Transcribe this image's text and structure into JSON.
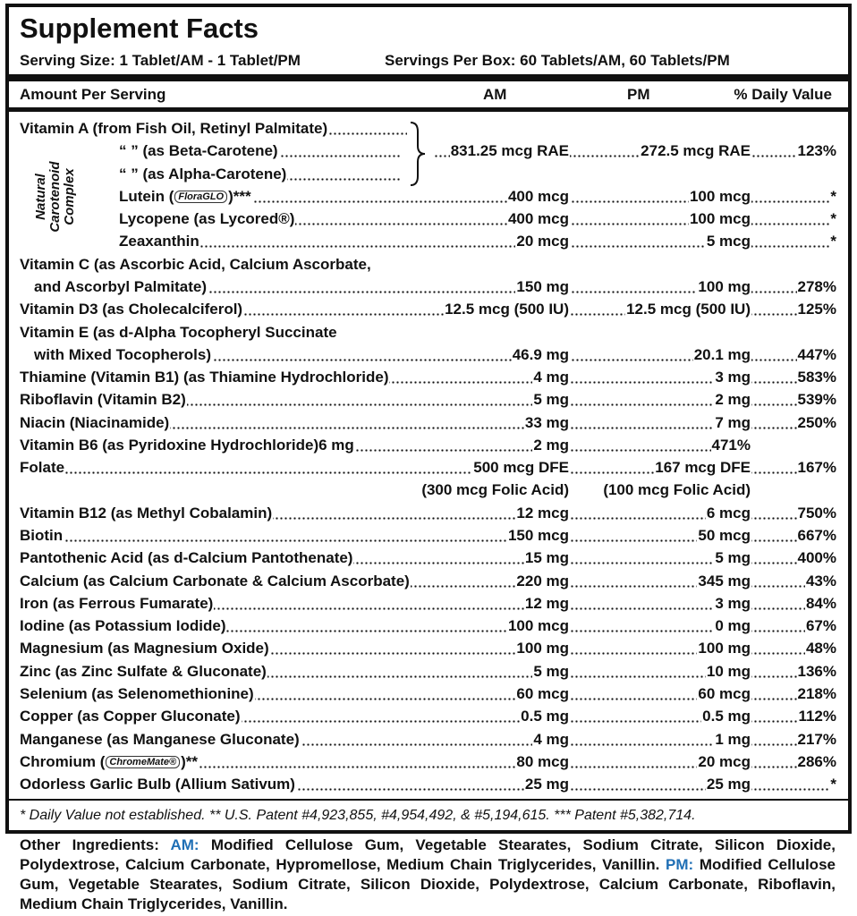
{
  "title": "Supplement Facts",
  "serving_size": "Serving Size: 1 Tablet/AM - 1 Tablet/PM",
  "servings_per_box": "Servings Per Box: 60 Tablets/AM, 60 Tablets/PM",
  "header": {
    "amount": "Amount Per Serving",
    "am": "AM",
    "pm": "PM",
    "dv": "% Daily Value"
  },
  "vitamin_a": {
    "name": "Vitamin A (from Fish Oil, Retinyl Palmitate)",
    "forms": [
      "“  ” (as Beta-Carotene)",
      "“  ” (as Alpha-Carotene)"
    ],
    "am": "831.25 mcg RAE",
    "pm": "272.5 mcg RAE",
    "dv": "123%"
  },
  "side_label": [
    "Natural",
    "Carotenoid",
    "Complex"
  ],
  "carotenoids": [
    {
      "name": "Lutein (",
      "logo": "FloraGLO",
      "name_end": ")***",
      "am": "400 mcg",
      "pm": "100 mcg",
      "dv": "*"
    },
    {
      "name": "Lycopene (as Lycored®)",
      "am": "400 mcg",
      "pm": "100 mcg",
      "dv": "*"
    },
    {
      "name": "Zeaxanthin",
      "am": "20 mcg",
      "pm": "5 mcg",
      "dv": "*"
    }
  ],
  "nutrients": [
    {
      "name": "Vitamin C (as Ascorbic Acid, Calcium Ascorbate,",
      "name_cont": "and Ascorbyl Palmitate)",
      "am": "150 mg",
      "pm": "100 mg",
      "dv": "278%"
    },
    {
      "name": "Vitamin D3 (as Cholecalciferol)",
      "am": "12.5 mcg (500 IU)",
      "pm": "12.5 mcg (500 IU)",
      "dv": "125%"
    },
    {
      "name": "Vitamin E (as d-Alpha Tocopheryl Succinate",
      "name_cont": "with Mixed Tocopherols)",
      "am": "46.9 mg",
      "pm": "20.1 mg",
      "dv": "447%"
    },
    {
      "name": "Thiamine (Vitamin B1) (as Thiamine Hydrochloride)",
      "am": "4 mg",
      "pm": "3 mg",
      "dv": "583%"
    },
    {
      "name": "Riboflavin (Vitamin B2)",
      "am": "5 mg",
      "pm": "2 mg",
      "dv": "539%"
    },
    {
      "name": "Niacin (Niacinamide)",
      "am": "33 mg",
      "pm": "7 mg",
      "dv": "250%"
    },
    {
      "name": "Vitamin B6 (as Pyridoxine Hydrochloride)6 mg",
      "am": "2 mg",
      "pm": "471%"
    },
    {
      "name": "Folate",
      "am": "500 mcg DFE",
      "pm": "167 mcg DFE",
      "dv": "167%",
      "am_note": "(300 mcg Folic Acid)",
      "pm_note": "(100 mcg Folic Acid)"
    },
    {
      "name": "Vitamin B12 (as Methyl Cobalamin)",
      "am": "12 mcg",
      "pm": "6 mcg",
      "dv": "750%"
    },
    {
      "name": "Biotin",
      "am": "150 mcg",
      "pm": "50 mcg",
      "dv": "667%"
    },
    {
      "name": "Pantothenic Acid (as d-Calcium Pantothenate)",
      "am": "15 mg",
      "pm": "5 mg",
      "dv": "400%"
    },
    {
      "name": "Calcium (as Calcium Carbonate & Calcium Ascorbate)",
      "am": "220 mg",
      "pm": "345 mg",
      "dv": "43%"
    },
    {
      "name": "Iron (as Ferrous Fumarate)",
      "am": "12 mg",
      "pm": "3 mg",
      "dv": "84%"
    },
    {
      "name": "Iodine (as Potassium Iodide)",
      "am": "100 mcg",
      "pm": "0 mg",
      "dv": "67%"
    },
    {
      "name": "Magnesium (as Magnesium Oxide)",
      "am": "100 mg",
      "pm": "100 mg",
      "dv": "48%"
    },
    {
      "name": "Zinc (as Zinc Sulfate & Gluconate)",
      "am": "5 mg",
      "pm": "10 mg",
      "dv": "136%"
    },
    {
      "name": "Selenium (as Selenomethionine)",
      "am": "60 mcg",
      "pm": "60 mcg",
      "dv": "218%"
    },
    {
      "name": "Copper (as Copper Gluconate)",
      "am": "0.5 mg",
      "pm": "0.5 mg",
      "dv": "112%"
    },
    {
      "name": "Manganese (as Manganese Gluconate)",
      "am": "4 mg",
      "pm": "1 mg",
      "dv": "217%"
    },
    {
      "name": "Chromium (",
      "logo": "ChromeMate®",
      "name_end": ")**",
      "am": "80 mcg",
      "pm": "20 mcg",
      "dv": "286%"
    },
    {
      "name": "Odorless Garlic Bulb (Allium Sativum)",
      "am": "25 mg",
      "pm": "25 mg",
      "dv": "*"
    }
  ],
  "footnote": "* Daily Value not established. ** U.S. Patent #4,923,855, #4,954,492, & #5,194,615. *** Patent #5,382,714.",
  "other_ingredients": {
    "label": "Other Ingredients:",
    "am_label": "AM:",
    "am_text": "Modified Cellulose Gum, Vegetable Stearates, Sodium Citrate, Silicon Dioxide, Polydextrose, Calcium Carbonate, Hypromellose, Medium Chain Triglycerides, Vanillin.",
    "pm_label": "PM:",
    "pm_text": "Modified Cellulose Gum, Vegetable Stearates, Sodium Citrate, Silicon Dioxide, Polydextrose, Calcium Carbonate, Riboflavin, Medium Chain Triglycerides, Vanillin."
  }
}
